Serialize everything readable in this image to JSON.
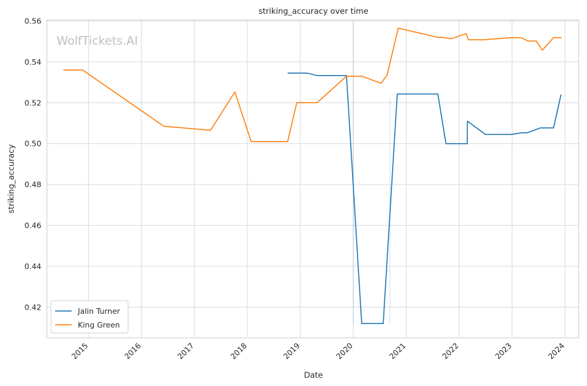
{
  "chart_data": {
    "type": "line",
    "title": "striking_accuracy over time",
    "xlabel": "Date",
    "ylabel": "striking_accuracy",
    "watermark": "WolfTickets.AI",
    "x_range": [
      "2014-03-20",
      "2024-04-05"
    ],
    "ylim": [
      0.405,
      0.5605
    ],
    "y_ticks": [
      0.42,
      0.44,
      0.46,
      0.48,
      0.5,
      0.52,
      0.54,
      0.56
    ],
    "y_tick_labels": [
      "0.42",
      "0.44",
      "0.46",
      "0.48",
      "0.50",
      "0.52",
      "0.54",
      "0.56"
    ],
    "x_ticks": [
      "2015-01-01",
      "2016-01-01",
      "2017-01-01",
      "2018-01-01",
      "2019-01-01",
      "2020-01-01",
      "2021-01-01",
      "2022-01-01",
      "2023-01-01",
      "2024-01-01"
    ],
    "x_tick_labels": [
      "2015",
      "2016",
      "2017",
      "2018",
      "2019",
      "2020",
      "2021",
      "2022",
      "2023",
      "2024"
    ],
    "grid": true,
    "legend_position": "lower-left",
    "series": [
      {
        "name": "Jalin Turner",
        "color": "#1f77b4",
        "points": [
          [
            "2018-10-06",
            0.5345
          ],
          [
            "2019-02-17",
            0.5345
          ],
          [
            "2019-04-27",
            0.5333
          ],
          [
            "2019-11-16",
            0.5333
          ],
          [
            "2020-02-29",
            0.412
          ],
          [
            "2020-07-26",
            0.412
          ],
          [
            "2020-10-31",
            0.5243
          ],
          [
            "2021-08-07",
            0.5243
          ],
          [
            "2021-10-02",
            0.5
          ],
          [
            "2022-02-26",
            0.5
          ],
          [
            "2022-02-27",
            0.511
          ],
          [
            "2022-07-02",
            0.5045
          ],
          [
            "2023-01-01",
            0.5045
          ],
          [
            "2023-03-04",
            0.5053
          ],
          [
            "2023-04-15",
            0.5053
          ],
          [
            "2023-07-15",
            0.5077
          ],
          [
            "2023-10-14",
            0.5077
          ],
          [
            "2023-12-05",
            0.524
          ]
        ]
      },
      {
        "name": "King Green",
        "color": "#ff7f0e",
        "points": [
          [
            "2014-07-12",
            0.536
          ],
          [
            "2014-11-22",
            0.536
          ],
          [
            "2016-06-04",
            0.5085
          ],
          [
            "2017-04-22",
            0.5065
          ],
          [
            "2017-10-07",
            0.5253
          ],
          [
            "2018-01-27",
            0.501
          ],
          [
            "2018-10-06",
            0.501
          ],
          [
            "2018-12-08",
            0.52
          ],
          [
            "2019-04-27",
            0.52
          ],
          [
            "2019-11-16",
            0.533
          ],
          [
            "2020-03-01",
            0.533
          ],
          [
            "2020-07-11",
            0.5295
          ],
          [
            "2020-08-22",
            0.5335
          ],
          [
            "2020-11-07",
            0.5565
          ],
          [
            "2021-08-07",
            0.552
          ],
          [
            "2021-09-11",
            0.552
          ],
          [
            "2021-11-06",
            0.5513
          ],
          [
            "2022-02-19",
            0.5538
          ],
          [
            "2022-03-05",
            0.5508
          ],
          [
            "2022-06-25",
            0.5508
          ],
          [
            "2022-12-17",
            0.5518
          ],
          [
            "2023-03-04",
            0.5518
          ],
          [
            "2023-04-22",
            0.5502
          ],
          [
            "2023-06-17",
            0.5502
          ],
          [
            "2023-07-29",
            0.5457
          ],
          [
            "2023-10-14",
            0.5518
          ],
          [
            "2023-12-09",
            0.5518
          ]
        ]
      }
    ]
  }
}
